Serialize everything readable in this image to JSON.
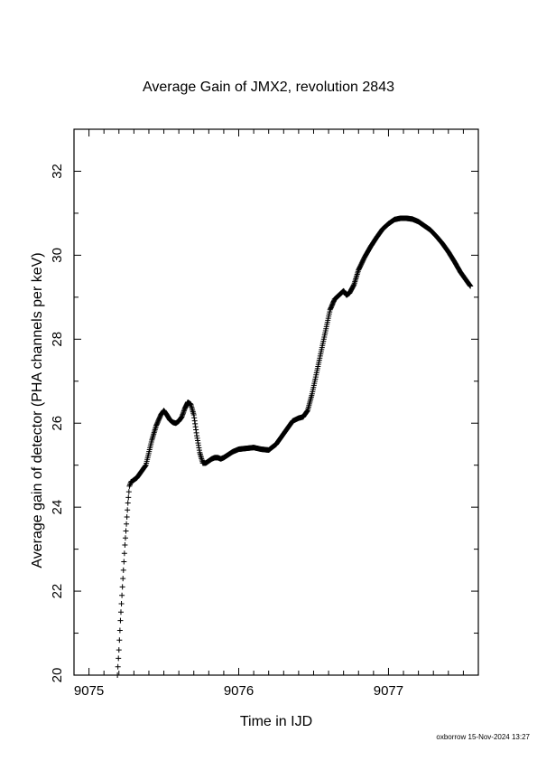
{
  "chart_data": {
    "type": "scatter",
    "title": "Average Gain of JMX2, revolution 2843",
    "xlabel": "Time in IJD",
    "ylabel": "Average gain of detector (PHA channels per keV)",
    "xlim": [
      9074.9,
      9077.6
    ],
    "ylim": [
      20,
      33
    ],
    "xticks": [
      9075,
      9076,
      9077
    ],
    "yticks": [
      20,
      22,
      24,
      26,
      28,
      30,
      32
    ],
    "x_minor_step": 0.1,
    "y_minor_step": 1,
    "marker": "plus",
    "grid": false,
    "legend": "none",
    "series": [
      {
        "x": [
          9075.19,
          9075.2,
          9075.21,
          9075.22,
          9075.23,
          9075.24,
          9075.25,
          9075.26,
          9075.27,
          9075.28,
          9075.29,
          9075.3,
          9075.32,
          9075.35,
          9075.38,
          9075.42,
          9075.45,
          9075.48,
          9075.5,
          9075.52,
          9075.54,
          9075.56,
          9075.58,
          9075.6,
          9075.62,
          9075.64,
          9075.66,
          9075.68,
          9075.7,
          9075.72,
          9075.74,
          9075.76,
          9075.78,
          9075.8,
          9075.82,
          9075.84,
          9075.86,
          9075.88,
          9075.9,
          9075.93,
          9075.96,
          9076.0,
          9076.05,
          9076.1,
          9076.15,
          9076.2,
          9076.25,
          9076.28,
          9076.32,
          9076.36,
          9076.4,
          9076.43,
          9076.46,
          9076.49,
          9076.52,
          9076.55,
          9076.58,
          9076.61,
          9076.64,
          9076.67,
          9076.7,
          9076.72,
          9076.74,
          9076.77,
          9076.8,
          9076.84,
          9076.88,
          9076.92,
          9076.96,
          9077.0,
          9077.04,
          9077.08,
          9077.12,
          9077.16,
          9077.2,
          9077.24,
          9077.28,
          9077.32,
          9077.36,
          9077.4,
          9077.44,
          9077.48,
          9077.52,
          9077.55
        ],
        "y": [
          20.0,
          20.6,
          21.3,
          21.9,
          22.5,
          23.1,
          23.6,
          24.1,
          24.5,
          24.6,
          24.62,
          24.65,
          24.7,
          24.85,
          25.0,
          25.6,
          25.95,
          26.2,
          26.3,
          26.2,
          26.08,
          26.02,
          26.0,
          26.05,
          26.15,
          26.35,
          26.5,
          26.45,
          26.2,
          25.7,
          25.3,
          25.05,
          25.05,
          25.1,
          25.15,
          25.18,
          25.18,
          25.15,
          25.18,
          25.25,
          25.32,
          25.38,
          25.4,
          25.42,
          25.38,
          25.36,
          25.5,
          25.65,
          25.85,
          26.05,
          26.12,
          26.15,
          26.3,
          26.7,
          27.2,
          27.7,
          28.2,
          28.7,
          28.95,
          29.05,
          29.15,
          29.05,
          29.1,
          29.3,
          29.65,
          29.95,
          30.2,
          30.42,
          30.62,
          30.75,
          30.85,
          30.88,
          30.88,
          30.86,
          30.8,
          30.7,
          30.6,
          30.45,
          30.28,
          30.08,
          29.85,
          29.6,
          29.4,
          29.25
        ]
      }
    ]
  },
  "footer": "oxborrow 15-Nov-2024 13:27"
}
